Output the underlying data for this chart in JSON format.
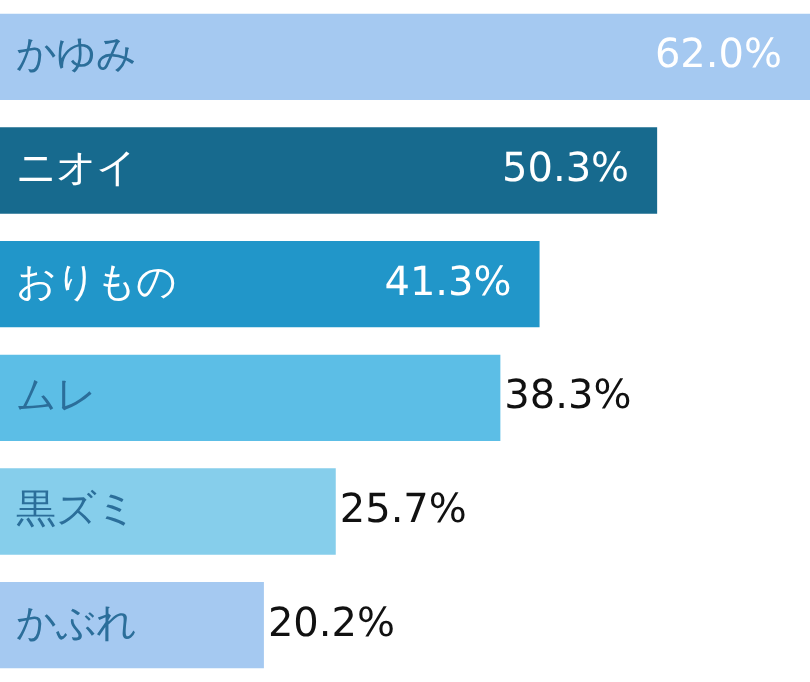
{
  "chart_data": {
    "type": "bar",
    "orientation": "horizontal",
    "categories": [
      "かゆみ",
      "ニオイ",
      "おりもの",
      "ムレ",
      "黒ズミ",
      "かぶれ"
    ],
    "values": [
      62.0,
      50.3,
      41.3,
      38.3,
      25.7,
      20.2
    ],
    "value_labels": [
      "62.0%",
      "50.3%",
      "41.3%",
      "38.3%",
      "25.7%",
      "20.2%"
    ],
    "colors": [
      "#a5c9f1",
      "#176a8e",
      "#2196c9",
      "#5cbee6",
      "#86ceeb",
      "#a5c9f1"
    ],
    "legend": false
  }
}
